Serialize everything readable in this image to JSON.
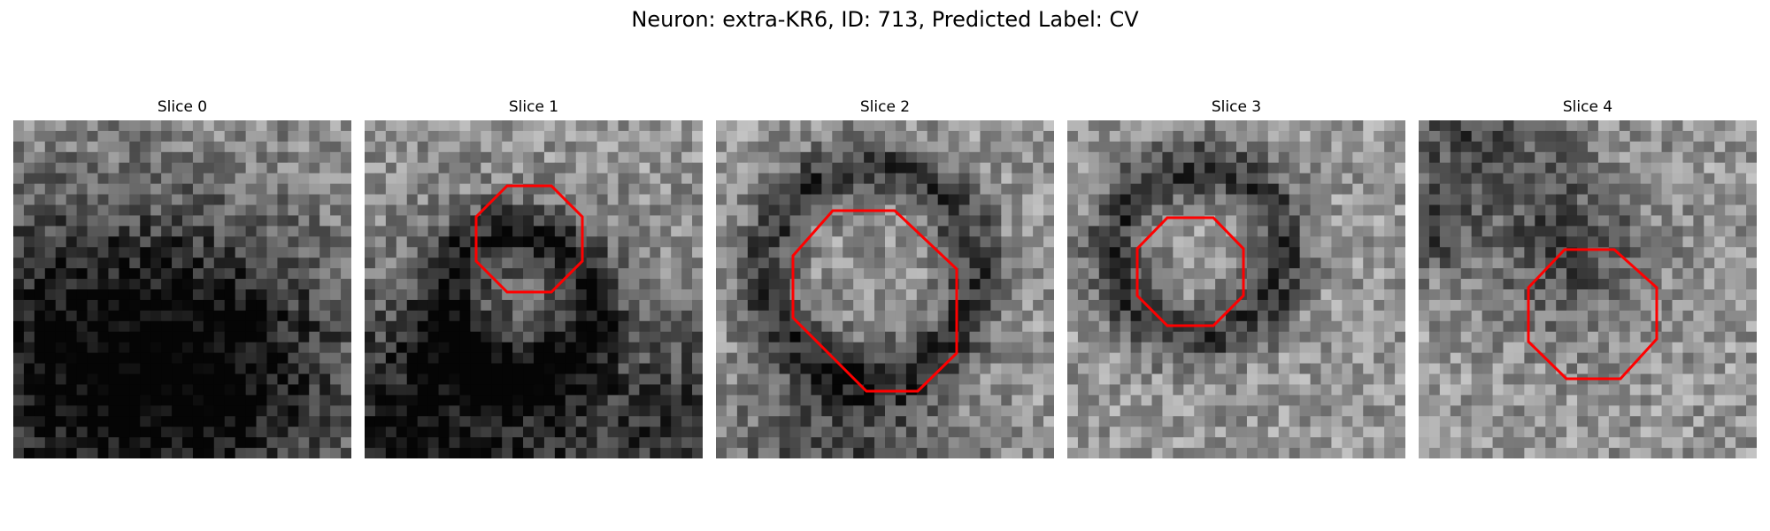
{
  "figure": {
    "title": "Neuron: extra-KR6, ID: 713, Predicted Label: CV"
  },
  "panels": [
    {
      "title": "Slice 0",
      "has_outline": false
    },
    {
      "title": "Slice 1",
      "has_outline": true
    },
    {
      "title": "Slice 2",
      "has_outline": true
    },
    {
      "title": "Slice 3",
      "has_outline": true
    },
    {
      "title": "Slice 4",
      "has_outline": true
    }
  ],
  "colors": {
    "outline": "#ff0000",
    "background": "#ffffff"
  }
}
